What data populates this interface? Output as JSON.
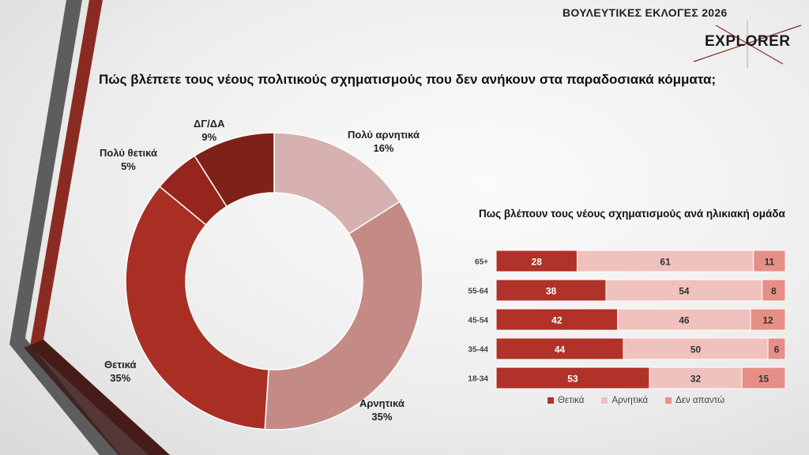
{
  "header": {
    "title": "ΒΟΥΛΕΥΤΙΚΕΣ ΕΚΛΟΓΕΣ 2026",
    "logo_text": "EXPLORER"
  },
  "question": "Πώς βλέπετε τους νέους πολιτικούς σχηματισμούς που δεν ανήκουν στα παραδοσιακά κόμματα;",
  "colors": {
    "positive": "#b03228",
    "negative": "#f0c2bd",
    "no_answer": "#e58f87",
    "donut_very_negative": "#d6b1af",
    "donut_negative": "#c48b86",
    "donut_positive": "#a92f25",
    "donut_very_positive": "#96261d",
    "donut_dk": "#7e2219"
  },
  "chart_data": [
    {
      "type": "pie",
      "donut": true,
      "title": "",
      "slices": [
        {
          "label": "Πολύ αρνητικά",
          "value": 16,
          "value_label": "16%",
          "color": "#d6b1af"
        },
        {
          "label": "Αρνητικά",
          "value": 35,
          "value_label": "35%",
          "color": "#c48b86"
        },
        {
          "label": "Θετικά",
          "value": 35,
          "value_label": "35%",
          "color": "#a92f25"
        },
        {
          "label": "Πολύ θετικά",
          "value": 5,
          "value_label": "5%",
          "color": "#96261d"
        },
        {
          "label": "ΔΓ/ΔΑ",
          "value": 9,
          "value_label": "9%",
          "color": "#7e2219"
        }
      ]
    },
    {
      "type": "bar",
      "orientation": "horizontal",
      "stacked": true,
      "title": "Πως βλέπουν τους νέους σχηματισμούς ανά ηλικιακή ομάδα",
      "categories": [
        "65+",
        "55-64",
        "45-54",
        "35-44",
        "18-34"
      ],
      "series": [
        {
          "name": "Θετικά",
          "values": [
            28,
            38,
            42,
            44,
            53
          ],
          "color": "#b03228"
        },
        {
          "name": "Αρνητικά",
          "values": [
            61,
            54,
            46,
            50,
            32
          ],
          "color": "#f0c2bd"
        },
        {
          "name": "Δεν απαντώ",
          "values": [
            11,
            8,
            12,
            6,
            15
          ],
          "color": "#e58f87"
        }
      ],
      "legend_position": "bottom"
    }
  ]
}
